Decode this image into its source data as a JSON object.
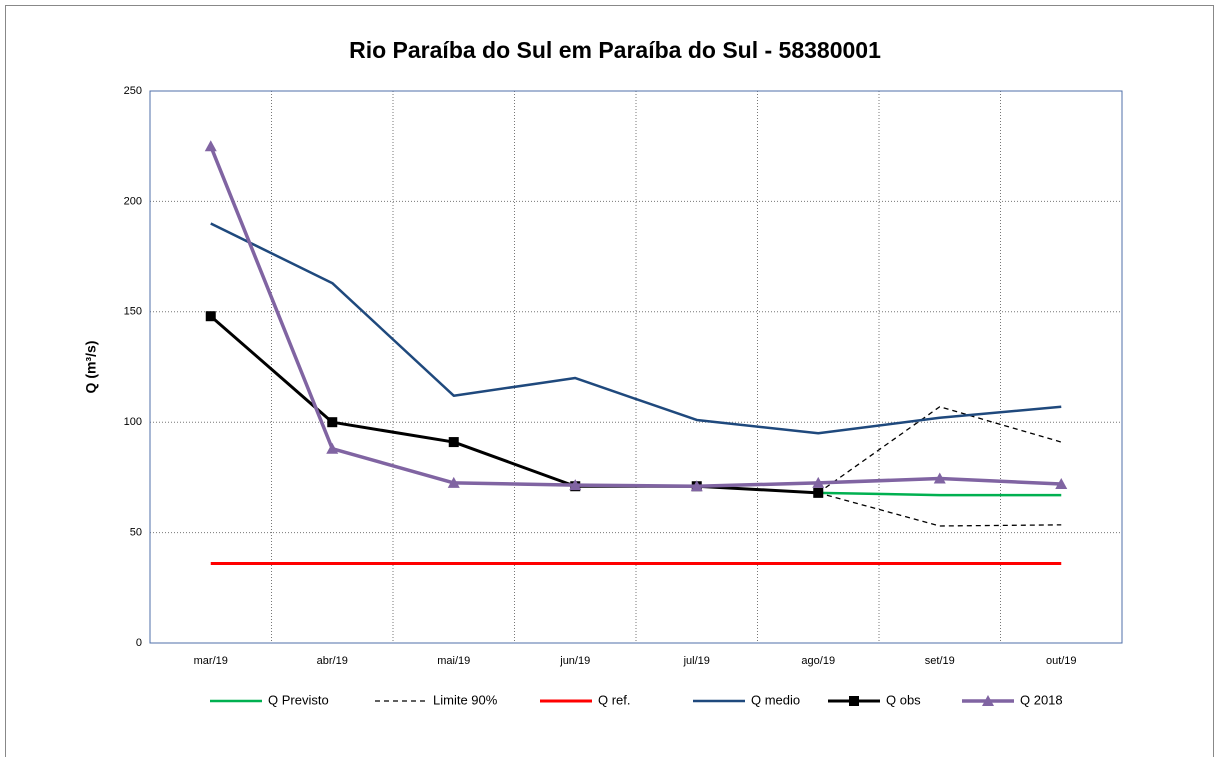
{
  "chart_data": {
    "type": "line",
    "title": "Rio Paraíba do Sul em Paraíba do Sul - 58380001",
    "y_label": "Q (m³/s)",
    "categories": [
      "mar/19",
      "abr/19",
      "mai/19",
      "jun/19",
      "jul/19",
      "ago/19",
      "set/19",
      "out/19"
    ],
    "ylim": [
      0,
      250
    ],
    "yticks": [
      0,
      50,
      100,
      150,
      200,
      250
    ],
    "grid": true,
    "series": [
      {
        "name": "Q Previsto",
        "color": "#00b050",
        "values": [
          null,
          null,
          null,
          null,
          null,
          68,
          67,
          67
        ]
      },
      {
        "name": "Limite 90%",
        "color": "#000000",
        "dash": true,
        "values": [
          null,
          null,
          null,
          null,
          null,
          68,
          107,
          91
        ],
        "lower": [
          null,
          null,
          null,
          null,
          null,
          68,
          53,
          53.5
        ]
      },
      {
        "name": "Q ref.",
        "color": "#ff0000",
        "values": [
          36,
          36,
          36,
          36,
          36,
          36,
          36,
          36
        ]
      },
      {
        "name": "Q medio",
        "color": "#1f497d",
        "values": [
          190,
          163,
          112,
          120,
          101,
          95,
          102,
          107
        ]
      },
      {
        "name": "Q obs",
        "color": "#000000",
        "marker": "square",
        "values": [
          148,
          100,
          91,
          71,
          71,
          68,
          null,
          null
        ]
      },
      {
        "name": "Q 2018",
        "color": "#8064a2",
        "marker": "triangle",
        "values": [
          225,
          88,
          72.5,
          71.5,
          71,
          72.5,
          74.5,
          72
        ]
      }
    ]
  }
}
